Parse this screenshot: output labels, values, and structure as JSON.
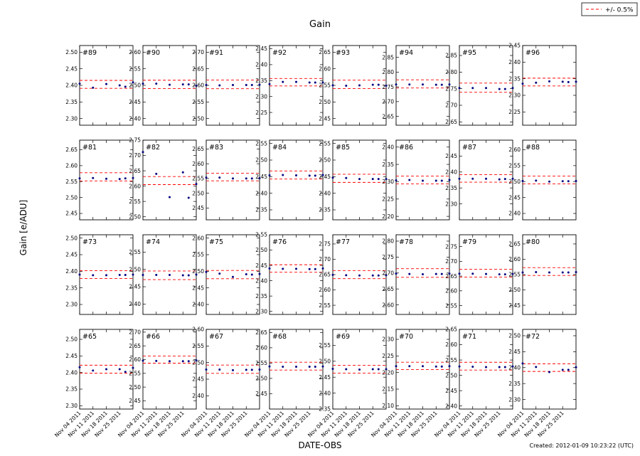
{
  "chart_data": {
    "type": "scatter",
    "title": "Gain",
    "xlabel": "DATE-OBS",
    "ylabel": "Gain [e/ADU]",
    "x_ticks": [
      "Nov 04 2011",
      "Nov 11 2011",
      "Nov 18 2011",
      "Nov 25 2011"
    ],
    "x_range": [
      0,
      28
    ],
    "obs_days": [
      0,
      7,
      14,
      21,
      24,
      28
    ],
    "legend": {
      "label": "+/- 0.5%",
      "position": "top-right"
    },
    "band_fraction": 0.005,
    "colors": {
      "points": "#000080",
      "band": "#ff0000",
      "frame": "#000000"
    },
    "grid": false,
    "created": "Created: 2012-01-09 10:23:22 (UTC)",
    "panels": [
      {
        "id": "#89",
        "ticks": [
          2.3,
          2.35,
          2.4,
          2.45,
          2.5
        ],
        "ylim": [
          2.28,
          2.52
        ],
        "center": 2.403,
        "values": [
          2.405,
          2.393,
          2.404,
          2.4,
          2.396,
          2.409
        ]
      },
      {
        "id": "#90",
        "ticks": [
          2.4,
          2.45,
          2.5,
          2.55,
          2.6
        ],
        "ylim": [
          2.38,
          2.62
        ],
        "center": 2.503,
        "values": [
          2.505,
          2.505,
          2.502,
          2.503,
          2.503,
          2.499
        ]
      },
      {
        "id": "#91",
        "ticks": [
          2.5,
          2.55,
          2.6,
          2.65,
          2.7
        ],
        "ylim": [
          2.48,
          2.72
        ],
        "center": 2.603,
        "values": [
          2.601,
          2.6,
          2.601,
          2.601,
          2.601,
          2.602
        ]
      },
      {
        "id": "#92",
        "ticks": [
          2.25,
          2.3,
          2.35,
          2.4,
          2.45
        ],
        "ylim": [
          2.21,
          2.46
        ],
        "center": 2.345,
        "values": [
          2.339,
          2.346,
          2.346,
          2.344,
          2.344,
          2.344
        ]
      },
      {
        "id": "#93",
        "ticks": [
          2.45,
          2.5,
          2.55,
          2.6,
          2.65
        ],
        "ylim": [
          2.43,
          2.67
        ],
        "center": 2.553,
        "values": [
          2.55,
          2.549,
          2.55,
          2.552,
          2.552,
          2.549
        ]
      },
      {
        "id": "#94",
        "ticks": [
          2.65,
          2.7,
          2.75,
          2.8,
          2.85
        ],
        "ylim": [
          2.62,
          2.89
        ],
        "center": 2.76,
        "values": [
          2.758,
          2.758,
          2.758,
          2.757,
          2.757,
          2.758
        ]
      },
      {
        "id": "#95",
        "ticks": [
          2.65,
          2.7,
          2.75,
          2.8,
          2.85
        ],
        "ylim": [
          2.64,
          2.88
        ],
        "center": 2.753,
        "values": [
          2.752,
          2.752,
          2.752,
          2.749,
          2.749,
          2.752
        ]
      },
      {
        "id": "#96",
        "ticks": [
          2.25,
          2.3,
          2.35,
          2.4,
          2.45
        ],
        "ylim": [
          2.21,
          2.45
        ],
        "center": 2.34,
        "values": [
          2.335,
          2.338,
          2.342,
          2.341,
          2.34,
          2.341
        ]
      },
      {
        "id": "#81",
        "ticks": [
          2.45,
          2.5,
          2.55,
          2.6,
          2.65
        ],
        "ylim": [
          2.43,
          2.68
        ],
        "center": 2.565,
        "values": [
          2.56,
          2.561,
          2.559,
          2.558,
          2.56,
          2.561
        ]
      },
      {
        "id": "#82",
        "ticks": [
          2.5,
          2.55,
          2.6,
          2.65,
          2.7,
          2.75
        ],
        "ylim": [
          2.49,
          2.75
        ],
        "center": 2.618,
        "values": [
          2.711,
          2.64,
          2.564,
          2.645,
          2.562,
          2.607
        ]
      },
      {
        "id": "#83",
        "ticks": [
          2.45,
          2.5,
          2.55,
          2.6,
          2.65
        ],
        "ylim": [
          2.41,
          2.68
        ],
        "center": 2.555,
        "values": [
          2.553,
          2.553,
          2.55,
          2.55,
          2.55,
          2.551
        ]
      },
      {
        "id": "#84",
        "ticks": [
          2.35,
          2.4,
          2.45,
          2.5,
          2.55
        ],
        "ylim": [
          2.32,
          2.56
        ],
        "center": 2.455,
        "values": [
          2.454,
          2.455,
          2.454,
          2.453,
          2.453,
          2.455
        ]
      },
      {
        "id": "#85",
        "ticks": [
          2.35,
          2.4,
          2.45,
          2.5,
          2.55
        ],
        "ylim": [
          2.32,
          2.56
        ],
        "center": 2.445,
        "values": [
          2.447,
          2.446,
          2.443,
          2.443,
          2.443,
          2.443
        ]
      },
      {
        "id": "#86",
        "ticks": [
          2.2,
          2.25,
          2.3,
          2.35,
          2.4
        ],
        "ylim": [
          2.19,
          2.42
        ],
        "center": 2.305,
        "values": [
          2.304,
          2.305,
          2.303,
          2.303,
          2.303,
          2.305
        ]
      },
      {
        "id": "#87",
        "ticks": [
          2.3,
          2.35,
          2.4,
          2.45
        ],
        "ylim": [
          2.25,
          2.5
        ],
        "center": 2.38,
        "values": [
          2.379,
          2.379,
          2.379,
          2.377,
          2.378,
          2.379
        ]
      },
      {
        "id": "#88",
        "ticks": [
          2.4,
          2.45,
          2.5,
          2.55,
          2.6
        ],
        "ylim": [
          2.38,
          2.63
        ],
        "center": 2.505,
        "values": [
          2.502,
          2.503,
          2.5,
          2.501,
          2.501,
          2.502
        ]
      },
      {
        "id": "#73",
        "ticks": [
          2.3,
          2.35,
          2.4,
          2.45,
          2.5
        ],
        "ylim": [
          2.27,
          2.51
        ],
        "center": 2.39,
        "values": [
          2.39,
          2.388,
          2.388,
          2.389,
          2.389,
          2.39
        ]
      },
      {
        "id": "#74",
        "ticks": [
          2.4,
          2.45,
          2.5,
          2.55
        ],
        "ylim": [
          2.37,
          2.6
        ],
        "center": 2.483,
        "values": [
          2.484,
          2.484,
          2.484,
          2.483,
          2.483,
          2.485
        ]
      },
      {
        "id": "#75",
        "ticks": [
          2.4,
          2.45,
          2.5,
          2.55,
          2.6
        ],
        "ylim": [
          2.37,
          2.61
        ],
        "center": 2.49,
        "values": [
          2.498,
          2.493,
          2.483,
          2.491,
          2.49,
          2.492
        ]
      },
      {
        "id": "#76",
        "ticks": [
          2.3,
          2.35,
          2.4,
          2.45,
          2.5,
          2.55
        ],
        "ylim": [
          2.29,
          2.55
        ],
        "center": 2.44,
        "values": [
          2.44,
          2.439,
          2.439,
          2.438,
          2.438,
          2.44
        ]
      },
      {
        "id": "#77",
        "ticks": [
          2.55,
          2.6,
          2.65,
          2.7,
          2.75
        ],
        "ylim": [
          2.52,
          2.78
        ],
        "center": 2.65,
        "values": [
          2.649,
          2.648,
          2.647,
          2.647,
          2.647,
          2.648
        ]
      },
      {
        "id": "#78",
        "ticks": [
          2.6,
          2.65,
          2.7,
          2.75,
          2.8
        ],
        "ylim": [
          2.57,
          2.82
        ],
        "center": 2.7,
        "values": [
          2.698,
          2.697,
          2.696,
          2.697,
          2.697,
          2.698
        ]
      },
      {
        "id": "#79",
        "ticks": [
          2.55,
          2.6,
          2.65,
          2.7,
          2.75
        ],
        "ylim": [
          2.52,
          2.79
        ],
        "center": 2.66,
        "values": [
          2.658,
          2.658,
          2.657,
          2.656,
          2.656,
          2.657
        ]
      },
      {
        "id": "#80",
        "ticks": [
          2.45,
          2.5,
          2.55,
          2.6,
          2.65
        ],
        "ylim": [
          2.42,
          2.68
        ],
        "center": 2.56,
        "values": [
          2.557,
          2.558,
          2.557,
          2.557,
          2.557,
          2.558
        ]
      },
      {
        "id": "#65",
        "ticks": [
          2.3,
          2.35,
          2.4,
          2.45,
          2.5
        ],
        "ylim": [
          2.29,
          2.53
        ],
        "center": 2.41,
        "values": [
          2.416,
          2.406,
          2.41,
          2.41,
          2.402,
          2.414
        ]
      },
      {
        "id": "#66",
        "ticks": [
          2.45,
          2.5,
          2.55,
          2.6,
          2.65,
          2.7
        ],
        "ylim": [
          2.42,
          2.71
        ],
        "center": 2.6,
        "values": [
          2.596,
          2.595,
          2.594,
          2.594,
          2.594,
          2.597
        ]
      },
      {
        "id": "#67",
        "ticks": [
          2.4,
          2.45,
          2.5,
          2.55,
          2.6
        ],
        "ylim": [
          2.36,
          2.6
        ],
        "center": 2.48,
        "values": [
          2.479,
          2.479,
          2.477,
          2.478,
          2.478,
          2.479
        ]
      },
      {
        "id": "#68",
        "ticks": [
          2.45,
          2.5,
          2.55,
          2.6,
          2.65
        ],
        "ylim": [
          2.4,
          2.66
        ],
        "center": 2.54,
        "values": [
          2.539,
          2.538,
          2.538,
          2.538,
          2.538,
          2.539
        ]
      },
      {
        "id": "#69",
        "ticks": [
          2.35,
          2.4,
          2.45,
          2.5,
          2.55
        ],
        "ylim": [
          2.35,
          2.6
        ],
        "center": 2.475,
        "values": [
          2.476,
          2.475,
          2.474,
          2.475,
          2.475,
          2.475
        ]
      },
      {
        "id": "#70",
        "ticks": [
          2.1,
          2.15,
          2.2,
          2.25,
          2.3
        ],
        "ylim": [
          2.09,
          2.33
        ],
        "center": 2.22,
        "values": [
          2.219,
          2.219,
          2.219,
          2.218,
          2.218,
          2.219
        ]
      },
      {
        "id": "#71",
        "ticks": [
          2.4,
          2.45,
          2.5,
          2.55,
          2.6,
          2.65
        ],
        "ylim": [
          2.39,
          2.65
        ],
        "center": 2.53,
        "values": [
          2.529,
          2.528,
          2.527,
          2.527,
          2.527,
          2.529
        ]
      },
      {
        "id": "#72",
        "ticks": [
          2.3,
          2.35,
          2.4,
          2.45,
          2.5
        ],
        "ylim": [
          2.27,
          2.52
        ],
        "center": 2.4,
        "values": [
          2.413,
          2.402,
          2.386,
          2.393,
          2.393,
          2.401
        ]
      }
    ]
  }
}
